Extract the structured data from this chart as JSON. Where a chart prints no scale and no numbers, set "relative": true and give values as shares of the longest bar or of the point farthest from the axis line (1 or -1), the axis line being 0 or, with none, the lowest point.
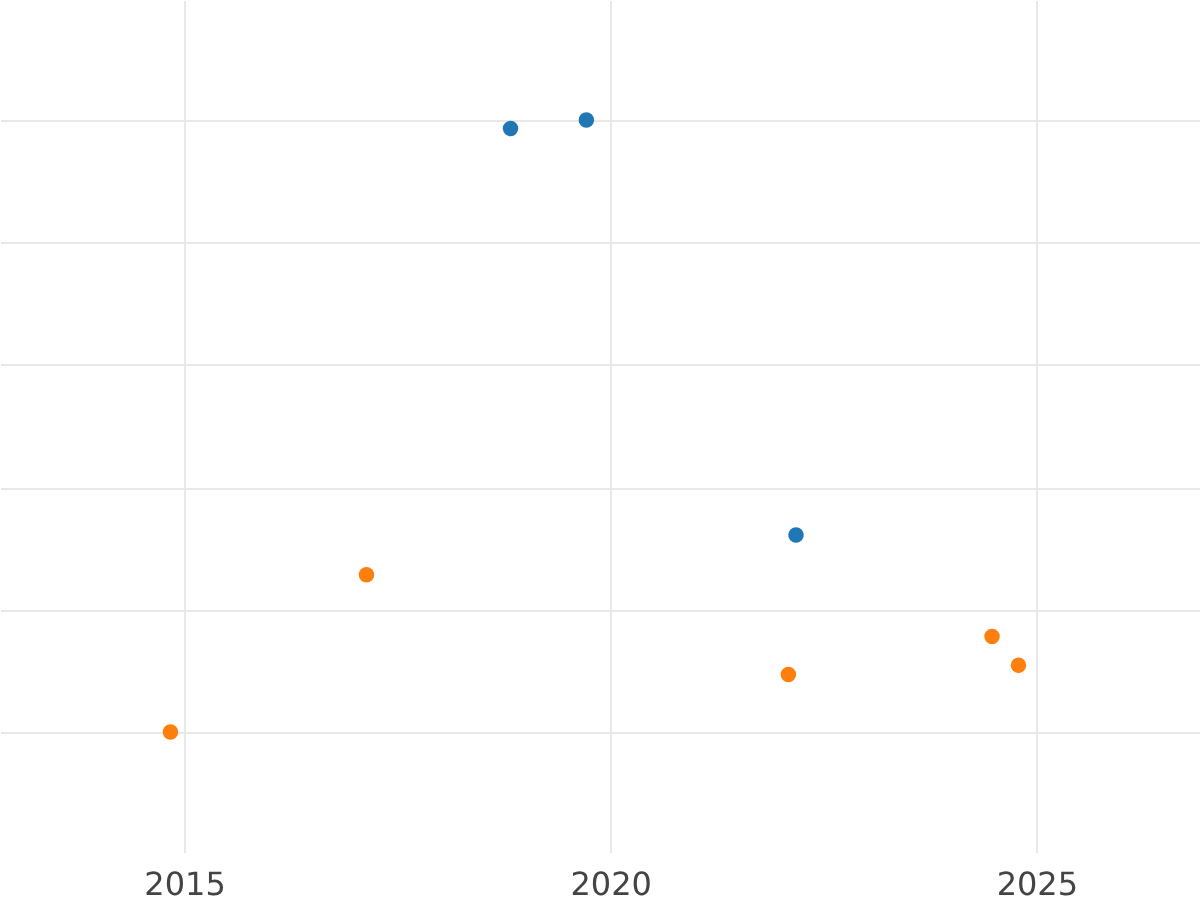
{
  "chart_data": {
    "type": "scatter",
    "relative": true,
    "xlim": [
      2012.84,
      2026.92
    ],
    "xticks": [
      2015,
      2020,
      2025
    ],
    "grid": true,
    "marker": "circle",
    "series": [
      {
        "color": "#1f77b4",
        "x": [
          2018.83,
          2019.72,
          2022.18
        ],
        "values": [
          0.986,
          1,
          0.322
        ]
      },
      {
        "color": "#ff7f0e",
        "x": [
          2014.84,
          2017.14,
          2022.09,
          2024.48,
          2024.79
        ],
        "values": [
          0,
          0.257,
          0.094,
          0.156,
          0.109
        ]
      }
    ]
  }
}
